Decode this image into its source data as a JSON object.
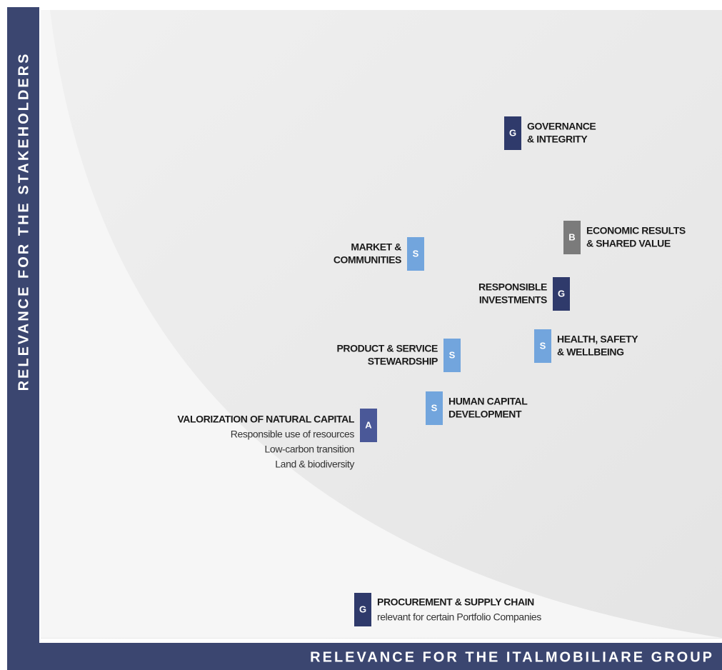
{
  "axes": {
    "y_label": "RELEVANCE FOR THE STAKEHOLDERS",
    "x_label": "RELEVANCE FOR THE ITALMOBILIARE GROUP"
  },
  "items": [
    {
      "badge": "G",
      "lines": [
        "GOVERNANCE",
        "& INTEGRITY"
      ]
    },
    {
      "badge": "B",
      "lines": [
        "ECONOMIC RESULTS",
        "& SHARED VALUE"
      ]
    },
    {
      "badge": "S",
      "lines": [
        "MARKET &",
        "COMMUNITIES"
      ]
    },
    {
      "badge": "G",
      "lines": [
        "RESPONSIBLE",
        "INVESTMENTS"
      ]
    },
    {
      "badge": "S",
      "lines": [
        "PRODUCT & SERVICE",
        "STEWARDSHIP"
      ]
    },
    {
      "badge": "S",
      "lines": [
        "HEALTH, SAFETY",
        "& WELLBEING"
      ]
    },
    {
      "badge": "S",
      "lines": [
        "HUMAN CAPITAL",
        "DEVELOPMENT"
      ]
    },
    {
      "badge": "A",
      "lines": [
        "VALORIZATION OF NATURAL CAPITAL"
      ],
      "sublines": [
        "Responsible use of resources",
        "Low-carbon transition",
        "Land & biodiversity"
      ]
    },
    {
      "badge": "G",
      "lines": [
        "PROCUREMENT & SUPPLY CHAIN"
      ],
      "sublines": [
        "relevant for certain Portfolio Companies"
      ]
    }
  ]
}
